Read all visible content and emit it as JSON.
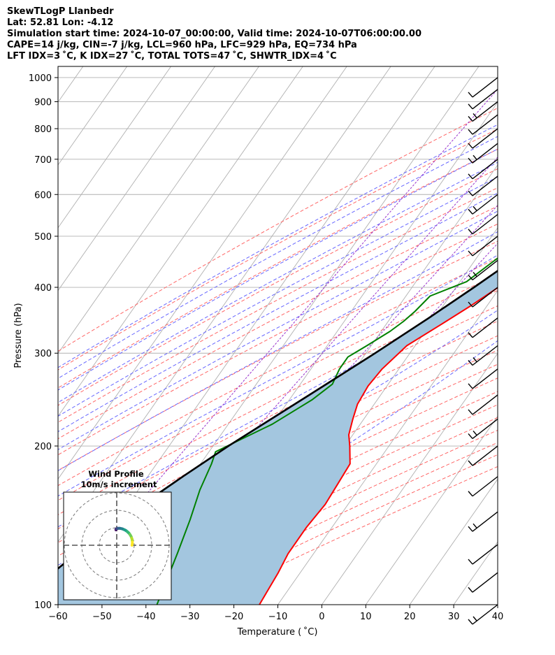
{
  "header": {
    "line1": "SkewTLogP Llanbedr",
    "line2": "Lat: 52.81   Lon: -4.12",
    "line3": "Simulation start time: 2024-10-07_00:00:00, Valid time: 2024-10-07T06:00:00.00",
    "line4": "CAPE=14 j/kg, CIN=-7 j/kg, LCL=960 hPa, LFC=929 hPa, EQ=734 hPa",
    "line5": "LFT IDX=3 ˚C, K IDX=27 ˚C, TOTAL TOTS=47 ˚C, SHWTR_IDX=4 ˚C"
  },
  "chart_data": {
    "type": "line",
    "subtype": "skew-T log-P diagram",
    "xlabel": "Temperature ( ˚C)",
    "ylabel": "Pressure (hPa)",
    "xlim": [
      -60,
      40
    ],
    "ylim": [
      1050,
      100
    ],
    "yscale": "log",
    "x_ticks": [
      "−60",
      "−50",
      "−40",
      "−30",
      "−20",
      "−10",
      "0",
      "10",
      "20",
      "30",
      "40"
    ],
    "x_tick_values": [
      -60,
      -50,
      -40,
      -30,
      -20,
      -10,
      0,
      10,
      20,
      30,
      40
    ],
    "y_ticks": [
      "100",
      "200",
      "300",
      "400",
      "500",
      "600",
      "700",
      "800",
      "900",
      "1000"
    ],
    "y_tick_values": [
      100,
      200,
      300,
      400,
      500,
      600,
      700,
      800,
      900,
      1000
    ],
    "grid": true,
    "series": [
      {
        "role": "temperature",
        "color": "#ff0000",
        "points": [
          [
            980,
            14.2
          ],
          [
            950,
            12.8
          ],
          [
            900,
            11.2
          ],
          [
            850,
            9.6
          ],
          [
            800,
            8.0
          ],
          [
            750,
            6.5
          ],
          [
            700,
            4.9
          ],
          [
            650,
            3.3
          ],
          [
            600,
            1.5
          ],
          [
            550,
            -0.6
          ],
          [
            500,
            -3.2
          ],
          [
            450,
            -6.3
          ],
          [
            400,
            -10.4
          ],
          [
            370,
            -13.6
          ],
          [
            340,
            -17.5
          ],
          [
            310,
            -21.9
          ],
          [
            300,
            -22.5
          ],
          [
            280,
            -23.8
          ],
          [
            260,
            -24.3
          ],
          [
            240,
            -23.8
          ],
          [
            225,
            -22.5
          ],
          [
            210,
            -20.9
          ],
          [
            200,
            -18.9
          ],
          [
            185,
            -16.0
          ],
          [
            170,
            -15.6
          ],
          [
            155,
            -15.2
          ],
          [
            140,
            -15.8
          ],
          [
            125,
            -15.8
          ],
          [
            115,
            -15.0
          ],
          [
            100,
            -14.2
          ]
        ]
      },
      {
        "role": "dewpoint",
        "color": "#008000",
        "points": [
          [
            980,
            13.0
          ],
          [
            950,
            12.0
          ],
          [
            900,
            9.5
          ],
          [
            850,
            7.0
          ],
          [
            800,
            5.0
          ],
          [
            750,
            3.0
          ],
          [
            700,
            1.0
          ],
          [
            650,
            -2.5
          ],
          [
            600,
            -5.0
          ],
          [
            550,
            -8.0
          ],
          [
            500,
            -11.5
          ],
          [
            450,
            -15.5
          ],
          [
            410,
            -18.5
          ],
          [
            385,
            -24.5
          ],
          [
            360,
            -25.5
          ],
          [
            345,
            -26.5
          ],
          [
            330,
            -28.0
          ],
          [
            310,
            -31.0
          ],
          [
            295,
            -33.5
          ],
          [
            280,
            -33.5
          ],
          [
            262,
            -32.7
          ],
          [
            245,
            -34.8
          ],
          [
            235,
            -36.8
          ],
          [
            220,
            -40.0
          ],
          [
            205,
            -45.0
          ],
          [
            195,
            -48.5
          ],
          [
            185,
            -47.5
          ],
          [
            165,
            -46.0
          ],
          [
            145,
            -43.5
          ],
          [
            125,
            -41.0
          ],
          [
            100,
            -37.5
          ]
        ]
      },
      {
        "role": "parcel",
        "color": "#000000",
        "points": [
          [
            980,
            14.5
          ],
          [
            960,
            13.3
          ],
          [
            929,
            11.9
          ],
          [
            900,
            10.8
          ],
          [
            850,
            9.1
          ],
          [
            800,
            7.3
          ],
          [
            750,
            5.4
          ],
          [
            700,
            3.3
          ],
          [
            650,
            1.1
          ],
          [
            600,
            -1.4
          ],
          [
            550,
            -4.3
          ],
          [
            500,
            -7.6
          ],
          [
            450,
            -11.4
          ],
          [
            400,
            -15.9
          ],
          [
            350,
            -21.3
          ],
          [
            300,
            -27.9
          ],
          [
            250,
            -36.2
          ],
          [
            200,
            -46.5
          ],
          [
            175,
            -52.0
          ],
          [
            150,
            -58.0
          ],
          [
            125,
            -64.0
          ],
          [
            100,
            -70.0
          ]
        ]
      }
    ],
    "cape_shading_color": "#a3c6df",
    "dry_adiabat_color": "#ff6666",
    "moist_adiabat_color": "#6666ff",
    "mixing_ratio_color": "#9933cc",
    "wind_barbs_side": "right",
    "inset": {
      "title": "Wind Profile",
      "subtitle": "10m/s increment",
      "type": "hodograph",
      "colormap": "viridis"
    }
  }
}
